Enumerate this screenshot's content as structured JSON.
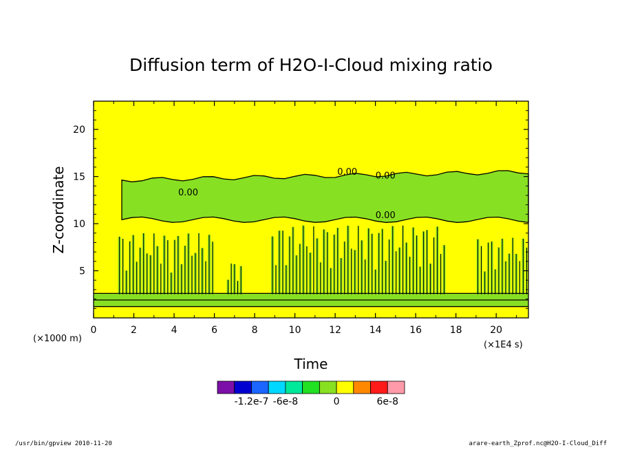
{
  "chart_data": {
    "type": "heatmap",
    "title": "Diffusion term of H2O-I-Cloud mixing ratio",
    "xlabel": "Time",
    "ylabel": "Z-coordinate",
    "x_unit_label": "(×1E4 s)",
    "y_unit_label": "(×1000 m)",
    "xlim": [
      0,
      21.6
    ],
    "ylim": [
      0,
      23
    ],
    "x_ticks": [
      "0",
      "2",
      "4",
      "6",
      "8",
      "10",
      "12",
      "14",
      "16",
      "18",
      "20"
    ],
    "x_tick_values": [
      0,
      2,
      4,
      6,
      8,
      10,
      12,
      14,
      16,
      18,
      20
    ],
    "y_ticks": [
      "5",
      "10",
      "15",
      "20"
    ],
    "y_tick_values": [
      5,
      10,
      15,
      20
    ],
    "background_level": "0",
    "regions": [
      {
        "name": "upper negative band",
        "level": "-2e-8",
        "x": [
          1.4,
          21.6
        ],
        "z": [
          10.2,
          15.5
        ]
      },
      {
        "name": "low-level layer",
        "level": "-2e-8",
        "x": [
          0,
          21.6
        ],
        "z": [
          1.2,
          2.6
        ]
      },
      {
        "name": "convective cells 1",
        "level": "-2e-8",
        "x": [
          1.2,
          6.0
        ],
        "z": [
          2.5,
          9.0
        ]
      },
      {
        "name": "convective cell 2",
        "level": "-2e-8",
        "x": [
          6.6,
          7.4
        ],
        "z": [
          2.5,
          6.0
        ]
      },
      {
        "name": "convective cells 3",
        "level": "-2e-8",
        "x": [
          8.8,
          17.5
        ],
        "z": [
          2.5,
          9.8
        ]
      },
      {
        "name": "convective cells 4",
        "level": "-2e-8",
        "x": [
          19.0,
          21.6
        ],
        "z": [
          2.5,
          8.5
        ]
      }
    ],
    "contour_labels": [
      "0.00",
      "0.00",
      "0.00",
      "0.00"
    ],
    "colorbar": {
      "colors": [
        "#7b0fa8",
        "#0000d0",
        "#1a66ff",
        "#00d8ff",
        "#00e89a",
        "#22e022",
        "#88e022",
        "#ffff00",
        "#ff8800",
        "#ff1a1a",
        "#ff9aaa"
      ],
      "tick_labels": [
        "-1.2e-7",
        "-6e-8",
        "0",
        "6e-8"
      ]
    }
  },
  "footer": {
    "left": "/usr/bin/gpview   2010-11-20",
    "right": "arare-earth_Zprof.nc@H2O-I-Cloud_Diff"
  }
}
